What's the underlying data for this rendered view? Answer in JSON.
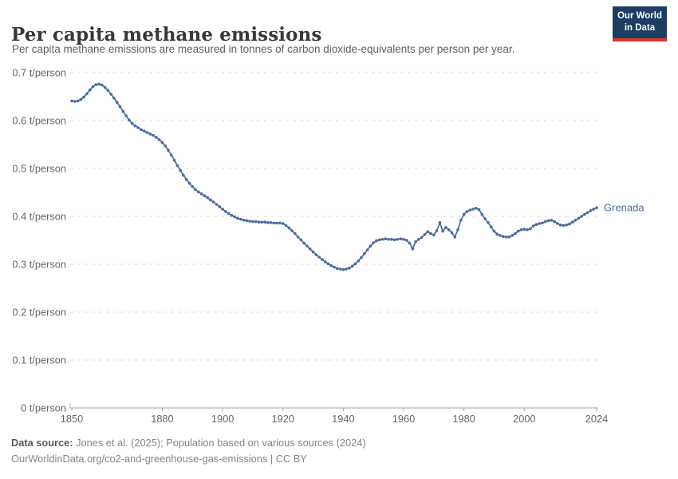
{
  "header": {
    "title": "Per capita methane emissions",
    "subtitle": "Per capita methane emissions are measured in tonnes of carbon dioxide-equivalents per person per year.",
    "logo": {
      "line1": "Our World",
      "line2": "in Data"
    }
  },
  "footer": {
    "datasource_label": "Data source:",
    "datasource_text": " Jones et al. (2025); Population based on various sources (2024)",
    "license_line": "OurWorldinData.org/co2-and-greenhouse-gas-emissions | CC BY"
  },
  "colors": {
    "accent": "#4c6b9e",
    "logo_bg": "#1d3d63",
    "logo_stripe": "#d6392c",
    "grid": "#dedede",
    "axis": "#a3a3a3",
    "tick_text": "#666666"
  },
  "chart_data": {
    "type": "line",
    "title": "Per capita methane emissions",
    "unit": "t/person",
    "grid": true,
    "legend_position": "end-of-line",
    "x_range": [
      1850,
      2024
    ],
    "ylim": [
      0,
      0.7
    ],
    "x_ticks": [
      1850,
      1880,
      1900,
      1920,
      1940,
      1960,
      1980,
      2000,
      2024
    ],
    "y_ticks": [
      {
        "value": 0.0,
        "label": "0 t/person"
      },
      {
        "value": 0.1,
        "label": "0.1 t/person"
      },
      {
        "value": 0.2,
        "label": "0.2 t/person"
      },
      {
        "value": 0.3,
        "label": "0.3 t/person"
      },
      {
        "value": 0.4,
        "label": "0.4 t/person"
      },
      {
        "value": 0.5,
        "label": "0.5 t/person"
      },
      {
        "value": 0.6,
        "label": "0.6 t/person"
      },
      {
        "value": 0.7,
        "label": "0.7 t/person"
      }
    ],
    "series": [
      {
        "name": "Grenada",
        "color": "#4c6b9e",
        "start_year": 1850,
        "values": [
          0.641,
          0.64,
          0.641,
          0.644,
          0.649,
          0.656,
          0.664,
          0.671,
          0.675,
          0.676,
          0.674,
          0.669,
          0.663,
          0.655,
          0.647,
          0.638,
          0.629,
          0.619,
          0.61,
          0.601,
          0.594,
          0.589,
          0.585,
          0.581,
          0.578,
          0.575,
          0.572,
          0.569,
          0.565,
          0.56,
          0.554,
          0.547,
          0.538,
          0.528,
          0.517,
          0.506,
          0.496,
          0.486,
          0.477,
          0.469,
          0.462,
          0.456,
          0.451,
          0.447,
          0.443,
          0.439,
          0.434,
          0.43,
          0.425,
          0.42,
          0.415,
          0.41,
          0.406,
          0.402,
          0.399,
          0.396,
          0.394,
          0.392,
          0.391,
          0.39,
          0.389,
          0.389,
          0.388,
          0.388,
          0.388,
          0.387,
          0.387,
          0.386,
          0.386,
          0.386,
          0.385,
          0.381,
          0.376,
          0.37,
          0.364,
          0.357,
          0.351,
          0.344,
          0.338,
          0.332,
          0.326,
          0.32,
          0.315,
          0.31,
          0.305,
          0.301,
          0.297,
          0.294,
          0.291,
          0.29,
          0.289,
          0.29,
          0.292,
          0.296,
          0.301,
          0.307,
          0.314,
          0.322,
          0.33,
          0.338,
          0.345,
          0.349,
          0.351,
          0.352,
          0.353,
          0.352,
          0.352,
          0.351,
          0.352,
          0.353,
          0.352,
          0.35,
          0.344,
          0.332,
          0.347,
          0.352,
          0.356,
          0.362,
          0.368,
          0.364,
          0.361,
          0.37,
          0.387,
          0.369,
          0.377,
          0.372,
          0.366,
          0.357,
          0.372,
          0.392,
          0.404,
          0.41,
          0.413,
          0.415,
          0.417,
          0.414,
          0.404,
          0.395,
          0.387,
          0.378,
          0.369,
          0.363,
          0.36,
          0.358,
          0.357,
          0.357,
          0.36,
          0.364,
          0.369,
          0.372,
          0.373,
          0.372,
          0.374,
          0.38,
          0.383,
          0.385,
          0.386,
          0.389,
          0.391,
          0.392,
          0.389,
          0.385,
          0.382,
          0.381,
          0.382,
          0.384,
          0.388,
          0.392,
          0.396,
          0.4,
          0.404,
          0.408,
          0.412,
          0.415,
          0.418
        ]
      }
    ]
  }
}
